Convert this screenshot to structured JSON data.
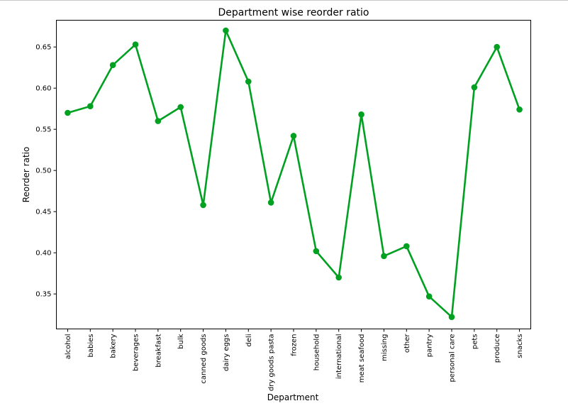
{
  "chart_data": {
    "type": "line",
    "title": "Department wise reorder ratio",
    "xlabel": "Department",
    "ylabel": "Reorder ratio",
    "categories": [
      "alcohol",
      "babies",
      "bakery",
      "beverages",
      "breakfast",
      "bulk",
      "canned goods",
      "dairy eggs",
      "deli",
      "dry goods pasta",
      "frozen",
      "household",
      "international",
      "meat seafood",
      "missing",
      "other",
      "pantry",
      "personal care",
      "pets",
      "produce",
      "snacks"
    ],
    "values": [
      0.57,
      0.578,
      0.628,
      0.653,
      0.56,
      0.577,
      0.458,
      0.67,
      0.608,
      0.461,
      0.542,
      0.402,
      0.37,
      0.568,
      0.396,
      0.408,
      0.347,
      0.322,
      0.601,
      0.65,
      0.574
    ],
    "yticks": [
      0.35,
      0.4,
      0.45,
      0.5,
      0.55,
      0.6,
      0.65
    ],
    "ytick_labels": [
      "0.35",
      "0.40",
      "0.45",
      "0.50",
      "0.55",
      "0.60",
      "0.65"
    ],
    "ylim": [
      0.3075,
      0.6825
    ],
    "line_color": "#00a020",
    "grid": false,
    "legend": "none"
  }
}
